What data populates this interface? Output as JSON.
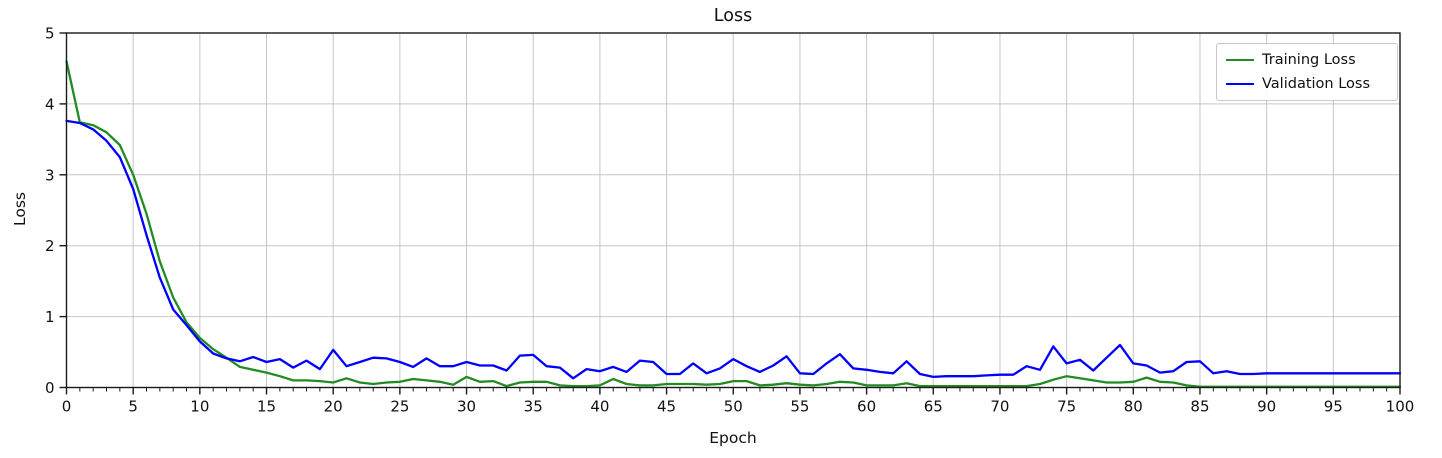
{
  "figure": {
    "title": "Loss",
    "xlabel": "Epoch",
    "ylabel": "Loss"
  },
  "chart_data": {
    "type": "line",
    "title": "Loss",
    "xlabel": "Epoch",
    "ylabel": "Loss",
    "xlim": [
      0,
      100
    ],
    "ylim": [
      0,
      5
    ],
    "xticks": [
      0,
      5,
      10,
      15,
      20,
      25,
      30,
      35,
      40,
      45,
      50,
      55,
      60,
      65,
      70,
      75,
      80,
      85,
      90,
      95,
      100
    ],
    "yticks": [
      0,
      1,
      2,
      3,
      4,
      5
    ],
    "grid": true,
    "legend_position": "upper right",
    "x": [
      0,
      1,
      2,
      3,
      4,
      5,
      6,
      7,
      8,
      9,
      10,
      11,
      12,
      13,
      14,
      15,
      16,
      17,
      18,
      19,
      20,
      21,
      22,
      23,
      24,
      25,
      26,
      27,
      28,
      29,
      30,
      31,
      32,
      33,
      34,
      35,
      36,
      37,
      38,
      39,
      40,
      41,
      42,
      43,
      44,
      45,
      46,
      47,
      48,
      49,
      50,
      51,
      52,
      53,
      54,
      55,
      56,
      57,
      58,
      59,
      60,
      61,
      62,
      63,
      64,
      65,
      66,
      67,
      68,
      69,
      70,
      71,
      72,
      73,
      74,
      75,
      76,
      77,
      78,
      79,
      80,
      81,
      82,
      83,
      84,
      85,
      86,
      87,
      88,
      89,
      90,
      91,
      92,
      93,
      94,
      95,
      96,
      97,
      98,
      99,
      100
    ],
    "series": [
      {
        "name": "Training Loss",
        "color": "#228b22",
        "values": [
          4.6,
          3.74,
          3.7,
          3.6,
          3.42,
          3.0,
          2.45,
          1.78,
          1.27,
          0.92,
          0.7,
          0.54,
          0.42,
          0.29,
          0.25,
          0.21,
          0.16,
          0.1,
          0.1,
          0.09,
          0.07,
          0.13,
          0.07,
          0.05,
          0.07,
          0.08,
          0.12,
          0.1,
          0.08,
          0.04,
          0.15,
          0.08,
          0.09,
          0.02,
          0.07,
          0.08,
          0.08,
          0.03,
          0.02,
          0.02,
          0.03,
          0.12,
          0.05,
          0.03,
          0.03,
          0.05,
          0.05,
          0.05,
          0.04,
          0.05,
          0.09,
          0.09,
          0.03,
          0.04,
          0.06,
          0.04,
          0.03,
          0.05,
          0.08,
          0.07,
          0.03,
          0.03,
          0.03,
          0.06,
          0.02,
          0.02,
          0.02,
          0.02,
          0.02,
          0.02,
          0.02,
          0.02,
          0.02,
          0.05,
          0.11,
          0.16,
          0.13,
          0.1,
          0.07,
          0.07,
          0.08,
          0.14,
          0.08,
          0.07,
          0.03,
          0.01,
          0.01,
          0.01,
          0.01,
          0.01,
          0.01,
          0.01,
          0.01,
          0.01,
          0.01,
          0.01,
          0.01,
          0.01,
          0.01,
          0.01,
          0.01
        ]
      },
      {
        "name": "Validation Loss",
        "color": "#0000ff",
        "values": [
          3.76,
          3.73,
          3.64,
          3.48,
          3.25,
          2.8,
          2.15,
          1.55,
          1.1,
          0.88,
          0.65,
          0.48,
          0.41,
          0.37,
          0.43,
          0.36,
          0.4,
          0.28,
          0.38,
          0.26,
          0.53,
          0.3,
          0.36,
          0.42,
          0.41,
          0.36,
          0.29,
          0.41,
          0.3,
          0.3,
          0.36,
          0.31,
          0.31,
          0.24,
          0.45,
          0.46,
          0.3,
          0.28,
          0.13,
          0.26,
          0.23,
          0.29,
          0.22,
          0.38,
          0.36,
          0.19,
          0.19,
          0.34,
          0.2,
          0.27,
          0.4,
          0.3,
          0.22,
          0.31,
          0.44,
          0.2,
          0.19,
          0.34,
          0.47,
          0.27,
          0.25,
          0.22,
          0.2,
          0.37,
          0.19,
          0.15,
          0.16,
          0.16,
          0.16,
          0.17,
          0.18,
          0.18,
          0.3,
          0.25,
          0.58,
          0.34,
          0.39,
          0.24,
          0.42,
          0.6,
          0.34,
          0.31,
          0.21,
          0.23,
          0.36,
          0.37,
          0.2,
          0.23,
          0.19,
          0.19,
          0.2,
          0.2,
          0.2,
          0.2,
          0.2,
          0.2,
          0.2,
          0.2,
          0.2,
          0.2,
          0.2
        ]
      }
    ],
    "colors": {
      "grid": "#c6c6c6",
      "spine": "#1a1a1a",
      "background": "#ffffff"
    }
  }
}
